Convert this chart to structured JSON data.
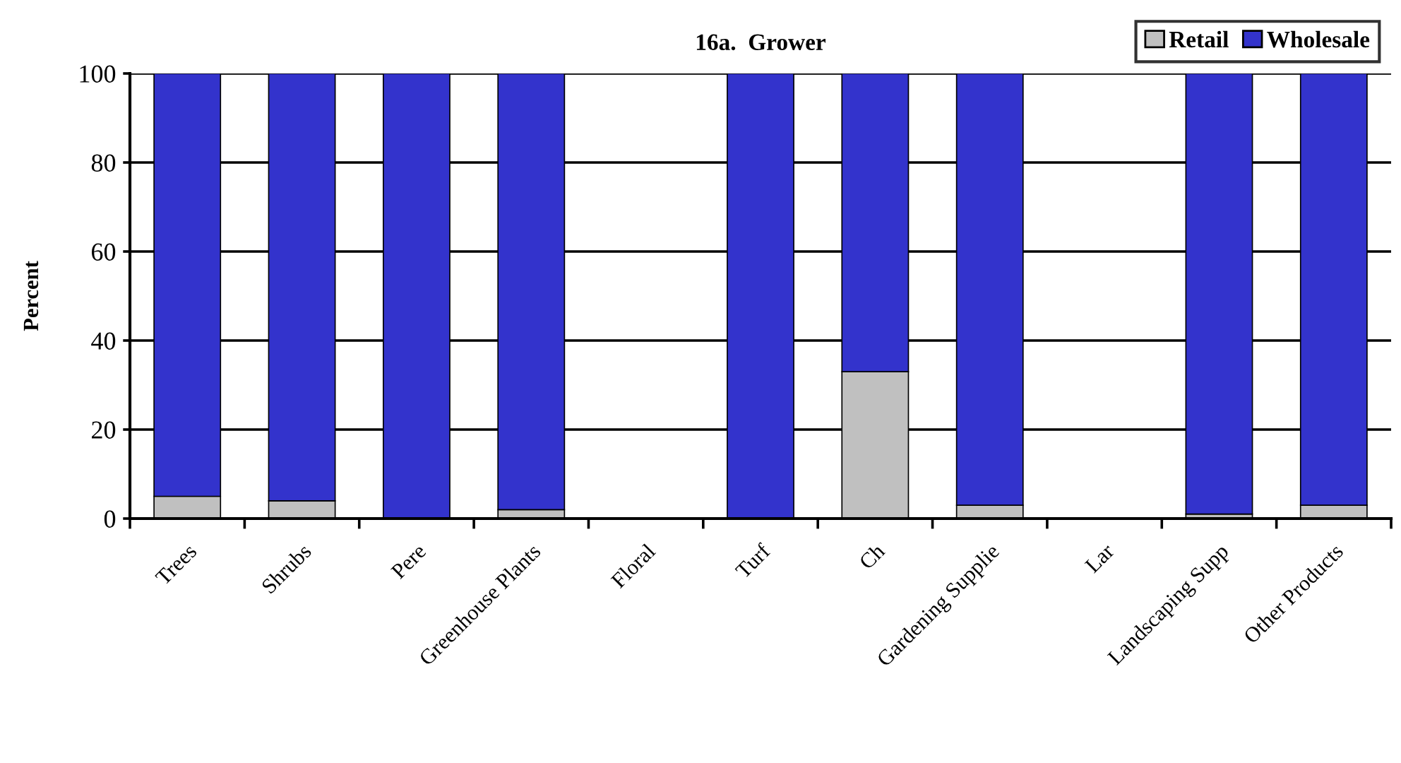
{
  "chart_data": {
    "type": "bar",
    "title": "16a.  Grower",
    "ylabel": "Percent",
    "categories": [
      "Trees",
      "Shrubs",
      "Pere",
      "Greenhouse Plants",
      "Floral",
      "Turf",
      "Ch",
      "Gardening Supplie",
      "Lar",
      "Landscaping Supp",
      "Other Products"
    ],
    "series": [
      {
        "name": "Retail",
        "color": "#c0c0c0",
        "values": [
          5,
          4,
          0,
          2,
          null,
          0,
          33,
          3,
          null,
          1,
          3
        ]
      },
      {
        "name": "Wholesale",
        "color": "#3333cc",
        "values": [
          95,
          96,
          100,
          98,
          null,
          100,
          67,
          97,
          null,
          99,
          97
        ]
      }
    ],
    "stacked": true,
    "ylim": [
      0,
      100
    ],
    "yticks": [
      0,
      20,
      40,
      60,
      80,
      100
    ],
    "grid": "y",
    "legend": "top right"
  }
}
